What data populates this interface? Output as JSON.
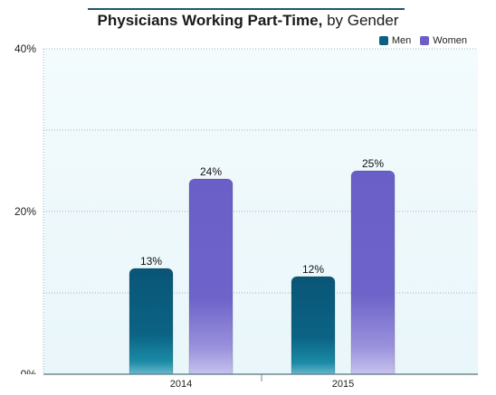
{
  "chart_data": {
    "type": "bar",
    "title": "Physicians Working Part-Time,",
    "title_suffix": "by Gender",
    "categories": [
      "2014",
      "2015"
    ],
    "series": [
      {
        "name": "Men",
        "values": [
          13,
          12
        ],
        "color": "#0b5f80"
      },
      {
        "name": "Women",
        "values": [
          24,
          25
        ],
        "color": "#6a5fc8"
      }
    ],
    "value_labels": [
      [
        "13%",
        "12%"
      ],
      [
        "24%",
        "25%"
      ]
    ],
    "y_ticks": [
      {
        "value": 0,
        "label": "0%"
      },
      {
        "value": 20,
        "label": "20%"
      },
      {
        "value": 40,
        "label": "40%"
      }
    ],
    "ylim": [
      0,
      40
    ],
    "grid": true,
    "legend_position": "top-right"
  }
}
